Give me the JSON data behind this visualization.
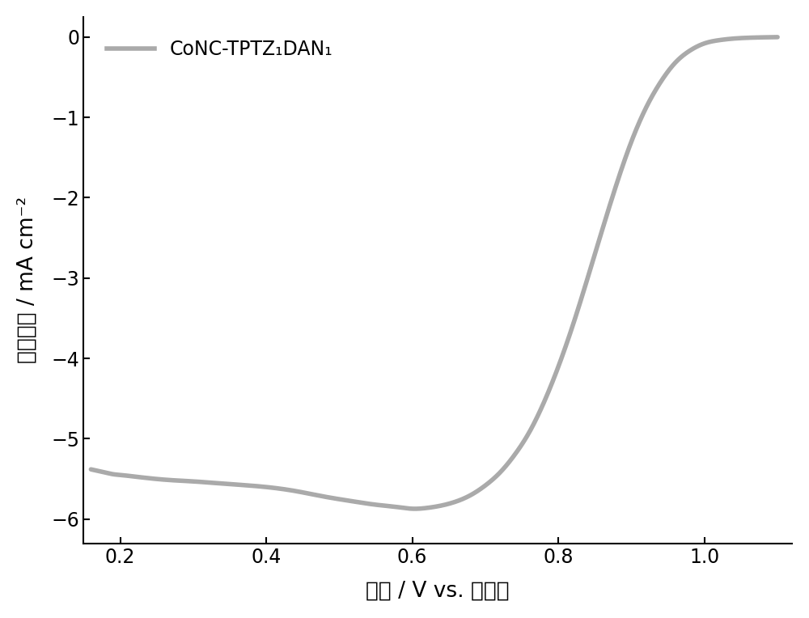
{
  "xlabel": "电势 / V vs. 可逆氢",
  "ylabel": "电流密度 / mA cm⁻²",
  "legend_label": "CoNC-TPTZ₁DAN₁",
  "line_color": "#aaaaaa",
  "line_width": 4.0,
  "xlim": [
    0.15,
    1.12
  ],
  "ylim": [
    -6.3,
    0.25
  ],
  "xticks": [
    0.2,
    0.4,
    0.6,
    0.8,
    1.0
  ],
  "yticks": [
    0,
    -1,
    -2,
    -3,
    -4,
    -5,
    -6
  ],
  "xlabel_fontsize": 19,
  "ylabel_fontsize": 19,
  "tick_fontsize": 17,
  "legend_fontsize": 17,
  "figsize": [
    10.0,
    7.64
  ],
  "dpi": 100,
  "curve_x": [
    0.16,
    0.17,
    0.18,
    0.19,
    0.2,
    0.22,
    0.25,
    0.28,
    0.3,
    0.33,
    0.36,
    0.4,
    0.44,
    0.48,
    0.52,
    0.55,
    0.58,
    0.6,
    0.62,
    0.64,
    0.66,
    0.68,
    0.7,
    0.72,
    0.74,
    0.76,
    0.78,
    0.8,
    0.82,
    0.84,
    0.86,
    0.88,
    0.9,
    0.92,
    0.94,
    0.96,
    0.98,
    1.0,
    1.02,
    1.04,
    1.06,
    1.08,
    1.1
  ],
  "curve_y": [
    -5.38,
    -5.4,
    -5.42,
    -5.44,
    -5.45,
    -5.47,
    -5.5,
    -5.52,
    -5.53,
    -5.55,
    -5.57,
    -5.6,
    -5.65,
    -5.72,
    -5.78,
    -5.82,
    -5.85,
    -5.87,
    -5.86,
    -5.83,
    -5.78,
    -5.7,
    -5.58,
    -5.42,
    -5.2,
    -4.92,
    -4.55,
    -4.1,
    -3.58,
    -3.0,
    -2.4,
    -1.82,
    -1.3,
    -0.88,
    -0.56,
    -0.32,
    -0.17,
    -0.08,
    -0.04,
    -0.02,
    -0.01,
    -0.005,
    -0.002
  ]
}
